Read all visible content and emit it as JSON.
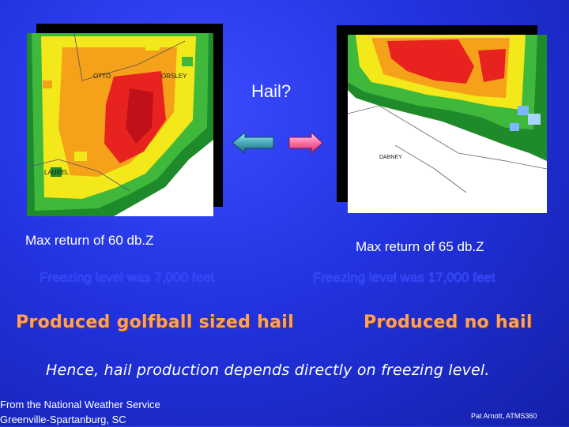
{
  "title": "Hail?",
  "left": {
    "max_return": "Max return of 60 db.Z",
    "freezing": "Freezing level was 7,000 feet",
    "result": "Produced golfball sized hail",
    "map_labels": [
      "OTTO",
      "ORSLEY",
      "LAUREL"
    ]
  },
  "right": {
    "max_return": "Max return of 65 db.Z",
    "freezing": "Freezing level was 17,000 feet",
    "result": "Produced no hail",
    "map_labels": [
      "DABNEY"
    ]
  },
  "conclusion": "Hence, hail production depends directly on freezing level.",
  "source_line1": "From the National Weather Service",
  "source_line2": "Greenville-Spartanburg, SC",
  "credit": "Pat Arnott, ATMS360",
  "colors": {
    "background": "#2233e0",
    "freezing_text": "#2c41ff",
    "result_text": "#ffa060"
  }
}
